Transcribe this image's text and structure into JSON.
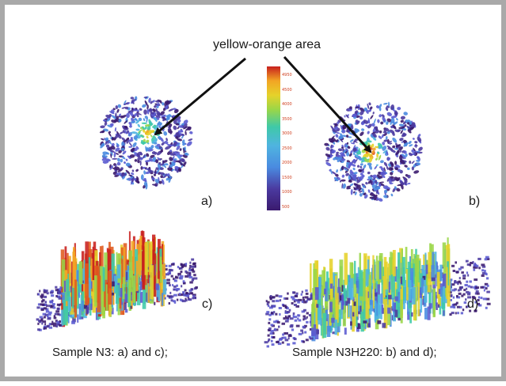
{
  "annotation": {
    "callout": "yellow-orange area"
  },
  "panels": [
    {
      "label": "a)"
    },
    {
      "label": "b)"
    },
    {
      "label": "c)"
    },
    {
      "label": "d)"
    }
  ],
  "captions": {
    "sample_1": "Sample N3:  a) and c);",
    "sample_2": "Sample N3H220:  b) and d);"
  },
  "colorbar": {
    "ticks": [
      "4950",
      "4500",
      "4000",
      "3500",
      "3000",
      "2500",
      "2000",
      "1500",
      "1000",
      "500"
    ]
  },
  "colors": {
    "frame": "#a9a9a9",
    "arrow": "#111111",
    "label": "#1a1a1a"
  },
  "palette": [
    "#3a1a6e",
    "#4b3aa0",
    "#5a5ad0",
    "#4a8be0",
    "#4fb4e0",
    "#3fc9a8",
    "#9ad648",
    "#e6d22a",
    "#f2a524",
    "#e05a1e",
    "#c8201e"
  ]
}
